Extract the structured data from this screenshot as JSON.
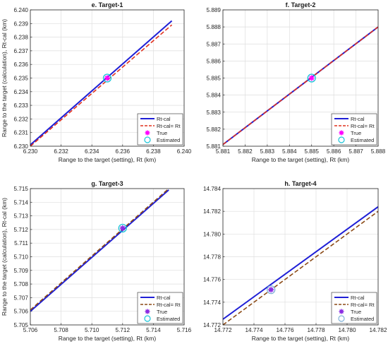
{
  "chart_data": [
    {
      "type": "line",
      "title": "e. Target-1",
      "xlabel": "Range to the target (setting), Rt (km)",
      "ylabel": "Range to the target (calculation), Rt-cal (km)",
      "xlim": [
        6.23,
        6.24
      ],
      "ylim": [
        6.23,
        6.24
      ],
      "xticks": [
        "6.230",
        "6.232",
        "6.234",
        "6.236",
        "6.238",
        "6.240"
      ],
      "yticks": [
        "6.230",
        "6.231",
        "6.232",
        "6.233",
        "6.234",
        "6.235",
        "6.236",
        "6.237",
        "6.238",
        "6.239",
        "6.240"
      ],
      "grid": true,
      "legend_position": "bottom-right",
      "series": [
        {
          "name": "Rt-cal",
          "style": "solid",
          "color": "#1f1fd6",
          "x": [
            6.23,
            6.2392
          ],
          "y": [
            6.2301,
            6.2392
          ]
        },
        {
          "name": "Rt-cal= Rt",
          "style": "dashed",
          "color": "#e0301e",
          "x": [
            6.23,
            6.2392
          ],
          "y": [
            6.23,
            6.2389
          ]
        },
        {
          "name": "True",
          "style": "marker-star",
          "color": "#ff00ff",
          "x": [
            6.235
          ],
          "y": [
            6.235
          ]
        },
        {
          "name": "Estimated",
          "style": "marker-circle",
          "color": "#19c5d8",
          "x": [
            6.235
          ],
          "y": [
            6.235
          ]
        }
      ]
    },
    {
      "type": "line",
      "title": "f. Target-2",
      "xlabel": "Range to the target (setting), Rt (km)",
      "ylabel": "",
      "xlim": [
        5.881,
        5.888
      ],
      "ylim": [
        5.881,
        5.889
      ],
      "xticks": [
        "5.881",
        "5.882",
        "5.883",
        "5.884",
        "5.885",
        "5.886",
        "5.887",
        "5.888"
      ],
      "yticks": [
        "5.881",
        "5.882",
        "5.883",
        "5.884",
        "5.885",
        "5.886",
        "5.887",
        "5.888",
        "5.889"
      ],
      "grid": true,
      "legend_position": "bottom-right",
      "series": [
        {
          "name": "Rt-cal",
          "style": "solid",
          "color": "#1f1fd6",
          "x": [
            5.881,
            5.888
          ],
          "y": [
            5.8811,
            5.888
          ]
        },
        {
          "name": "Rt-cal= Rt",
          "style": "dashed",
          "color": "#e0301e",
          "x": [
            5.881,
            5.888
          ],
          "y": [
            5.8811,
            5.888
          ]
        },
        {
          "name": "True",
          "style": "marker-star",
          "color": "#ff00ff",
          "x": [
            5.885
          ],
          "y": [
            5.885
          ]
        },
        {
          "name": "Estimated",
          "style": "marker-circle",
          "color": "#19c5d8",
          "x": [
            5.885
          ],
          "y": [
            5.885
          ]
        }
      ]
    },
    {
      "type": "line",
      "title": "g. Target-3",
      "xlabel": "Range to the target (setting), Rt (km)",
      "ylabel": "Range to the target (calculation), Rt-cal (km)",
      "xlim": [
        5.706,
        5.716
      ],
      "ylim": [
        5.705,
        5.715
      ],
      "xticks": [
        "5.706",
        "5.708",
        "5.710",
        "5.712",
        "5.714",
        "5.716"
      ],
      "yticks": [
        "5.705",
        "5.706",
        "5.707",
        "5.708",
        "5.709",
        "5.710",
        "5.711",
        "5.712",
        "5.713",
        "5.714",
        "5.715"
      ],
      "grid": true,
      "legend_position": "bottom-right",
      "series": [
        {
          "name": "Rt-cal",
          "style": "solid",
          "color": "#1f1fd6",
          "x": [
            5.706,
            5.715
          ],
          "y": [
            5.706,
            5.7149
          ]
        },
        {
          "name": "Rt-cal= Rt",
          "style": "dashed",
          "color": "#8b4a16",
          "x": [
            5.706,
            5.715
          ],
          "y": [
            5.7061,
            5.715
          ]
        },
        {
          "name": "True",
          "style": "marker-star",
          "color": "#8a2be2",
          "x": [
            5.712
          ],
          "y": [
            5.7121
          ]
        },
        {
          "name": "Estimated",
          "style": "marker-circle",
          "color": "#19c5d8",
          "x": [
            5.712
          ],
          "y": [
            5.7121
          ]
        }
      ]
    },
    {
      "type": "line",
      "title": "h. Target-4",
      "xlabel": "Range to the target (setting), Rt (km)",
      "ylabel": "",
      "xlim": [
        14.772,
        14.782
      ],
      "ylim": [
        14.772,
        14.784
      ],
      "xticks": [
        "14.772",
        "14.774",
        "14.776",
        "14.778",
        "14.780",
        "14.782"
      ],
      "yticks": [
        "14.772",
        "14.774",
        "14.776",
        "14.778",
        "14.780",
        "14.782",
        "14.784"
      ],
      "grid": true,
      "legend_position": "bottom-right",
      "series": [
        {
          "name": "Rt-cal",
          "style": "solid",
          "color": "#1f1fd6",
          "x": [
            14.772,
            14.782
          ],
          "y": [
            14.7725,
            14.7824
          ]
        },
        {
          "name": "Rt-cal= Rt",
          "style": "dashed",
          "color": "#8b4a16",
          "x": [
            14.772,
            14.782
          ],
          "y": [
            14.772,
            14.782
          ]
        },
        {
          "name": "True",
          "style": "marker-star",
          "color": "#8a2be2",
          "x": [
            14.7751
          ],
          "y": [
            14.7751
          ]
        },
        {
          "name": "Estimated",
          "style": "marker-circle",
          "color": "#7fb2d9",
          "x": [
            14.7751
          ],
          "y": [
            14.7751
          ]
        }
      ]
    }
  ]
}
